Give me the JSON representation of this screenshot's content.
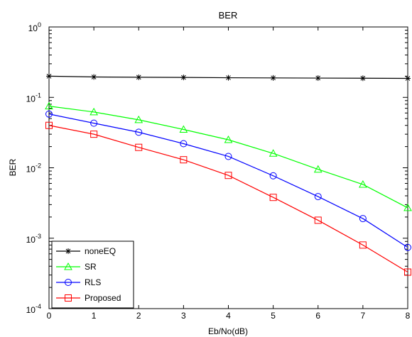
{
  "chart_data": {
    "type": "line",
    "title": "BER",
    "xlabel": "Eb/No(dB)",
    "ylabel": "BER",
    "xlim": [
      0,
      8
    ],
    "ylim": [
      0.0001,
      1
    ],
    "yscale": "log",
    "grid": false,
    "legend_position": "bottom-left",
    "x": [
      0,
      1,
      2,
      3,
      4,
      5,
      6,
      7,
      8
    ],
    "x_ticks": [
      "0",
      "1",
      "2",
      "3",
      "4",
      "5",
      "6",
      "7",
      "8"
    ],
    "y_ticks": [
      {
        "base": "10",
        "exp": "0",
        "value": 1
      },
      {
        "base": "10",
        "exp": "-1",
        "value": 0.1
      },
      {
        "base": "10",
        "exp": "-2",
        "value": 0.01
      },
      {
        "base": "10",
        "exp": "-3",
        "value": 0.001
      },
      {
        "base": "10",
        "exp": "-4",
        "value": 0.0001
      }
    ],
    "series": [
      {
        "name": "noneEQ",
        "color": "#000000",
        "marker": "star",
        "values": [
          0.2,
          0.195,
          0.193,
          0.192,
          0.19,
          0.189,
          0.188,
          0.187,
          0.186
        ]
      },
      {
        "name": "SR",
        "color": "#00ff00",
        "marker": "triangle",
        "values": [
          0.075,
          0.062,
          0.048,
          0.035,
          0.025,
          0.016,
          0.0095,
          0.0058,
          0.0027
        ]
      },
      {
        "name": "RLS",
        "color": "#0000ff",
        "marker": "circle",
        "values": [
          0.058,
          0.043,
          0.032,
          0.022,
          0.0145,
          0.0077,
          0.0039,
          0.0019,
          0.00074
        ]
      },
      {
        "name": "Proposed",
        "color": "#ff0000",
        "marker": "square",
        "values": [
          0.04,
          0.03,
          0.0195,
          0.013,
          0.0078,
          0.0038,
          0.0018,
          0.0008,
          0.00033
        ]
      }
    ]
  }
}
